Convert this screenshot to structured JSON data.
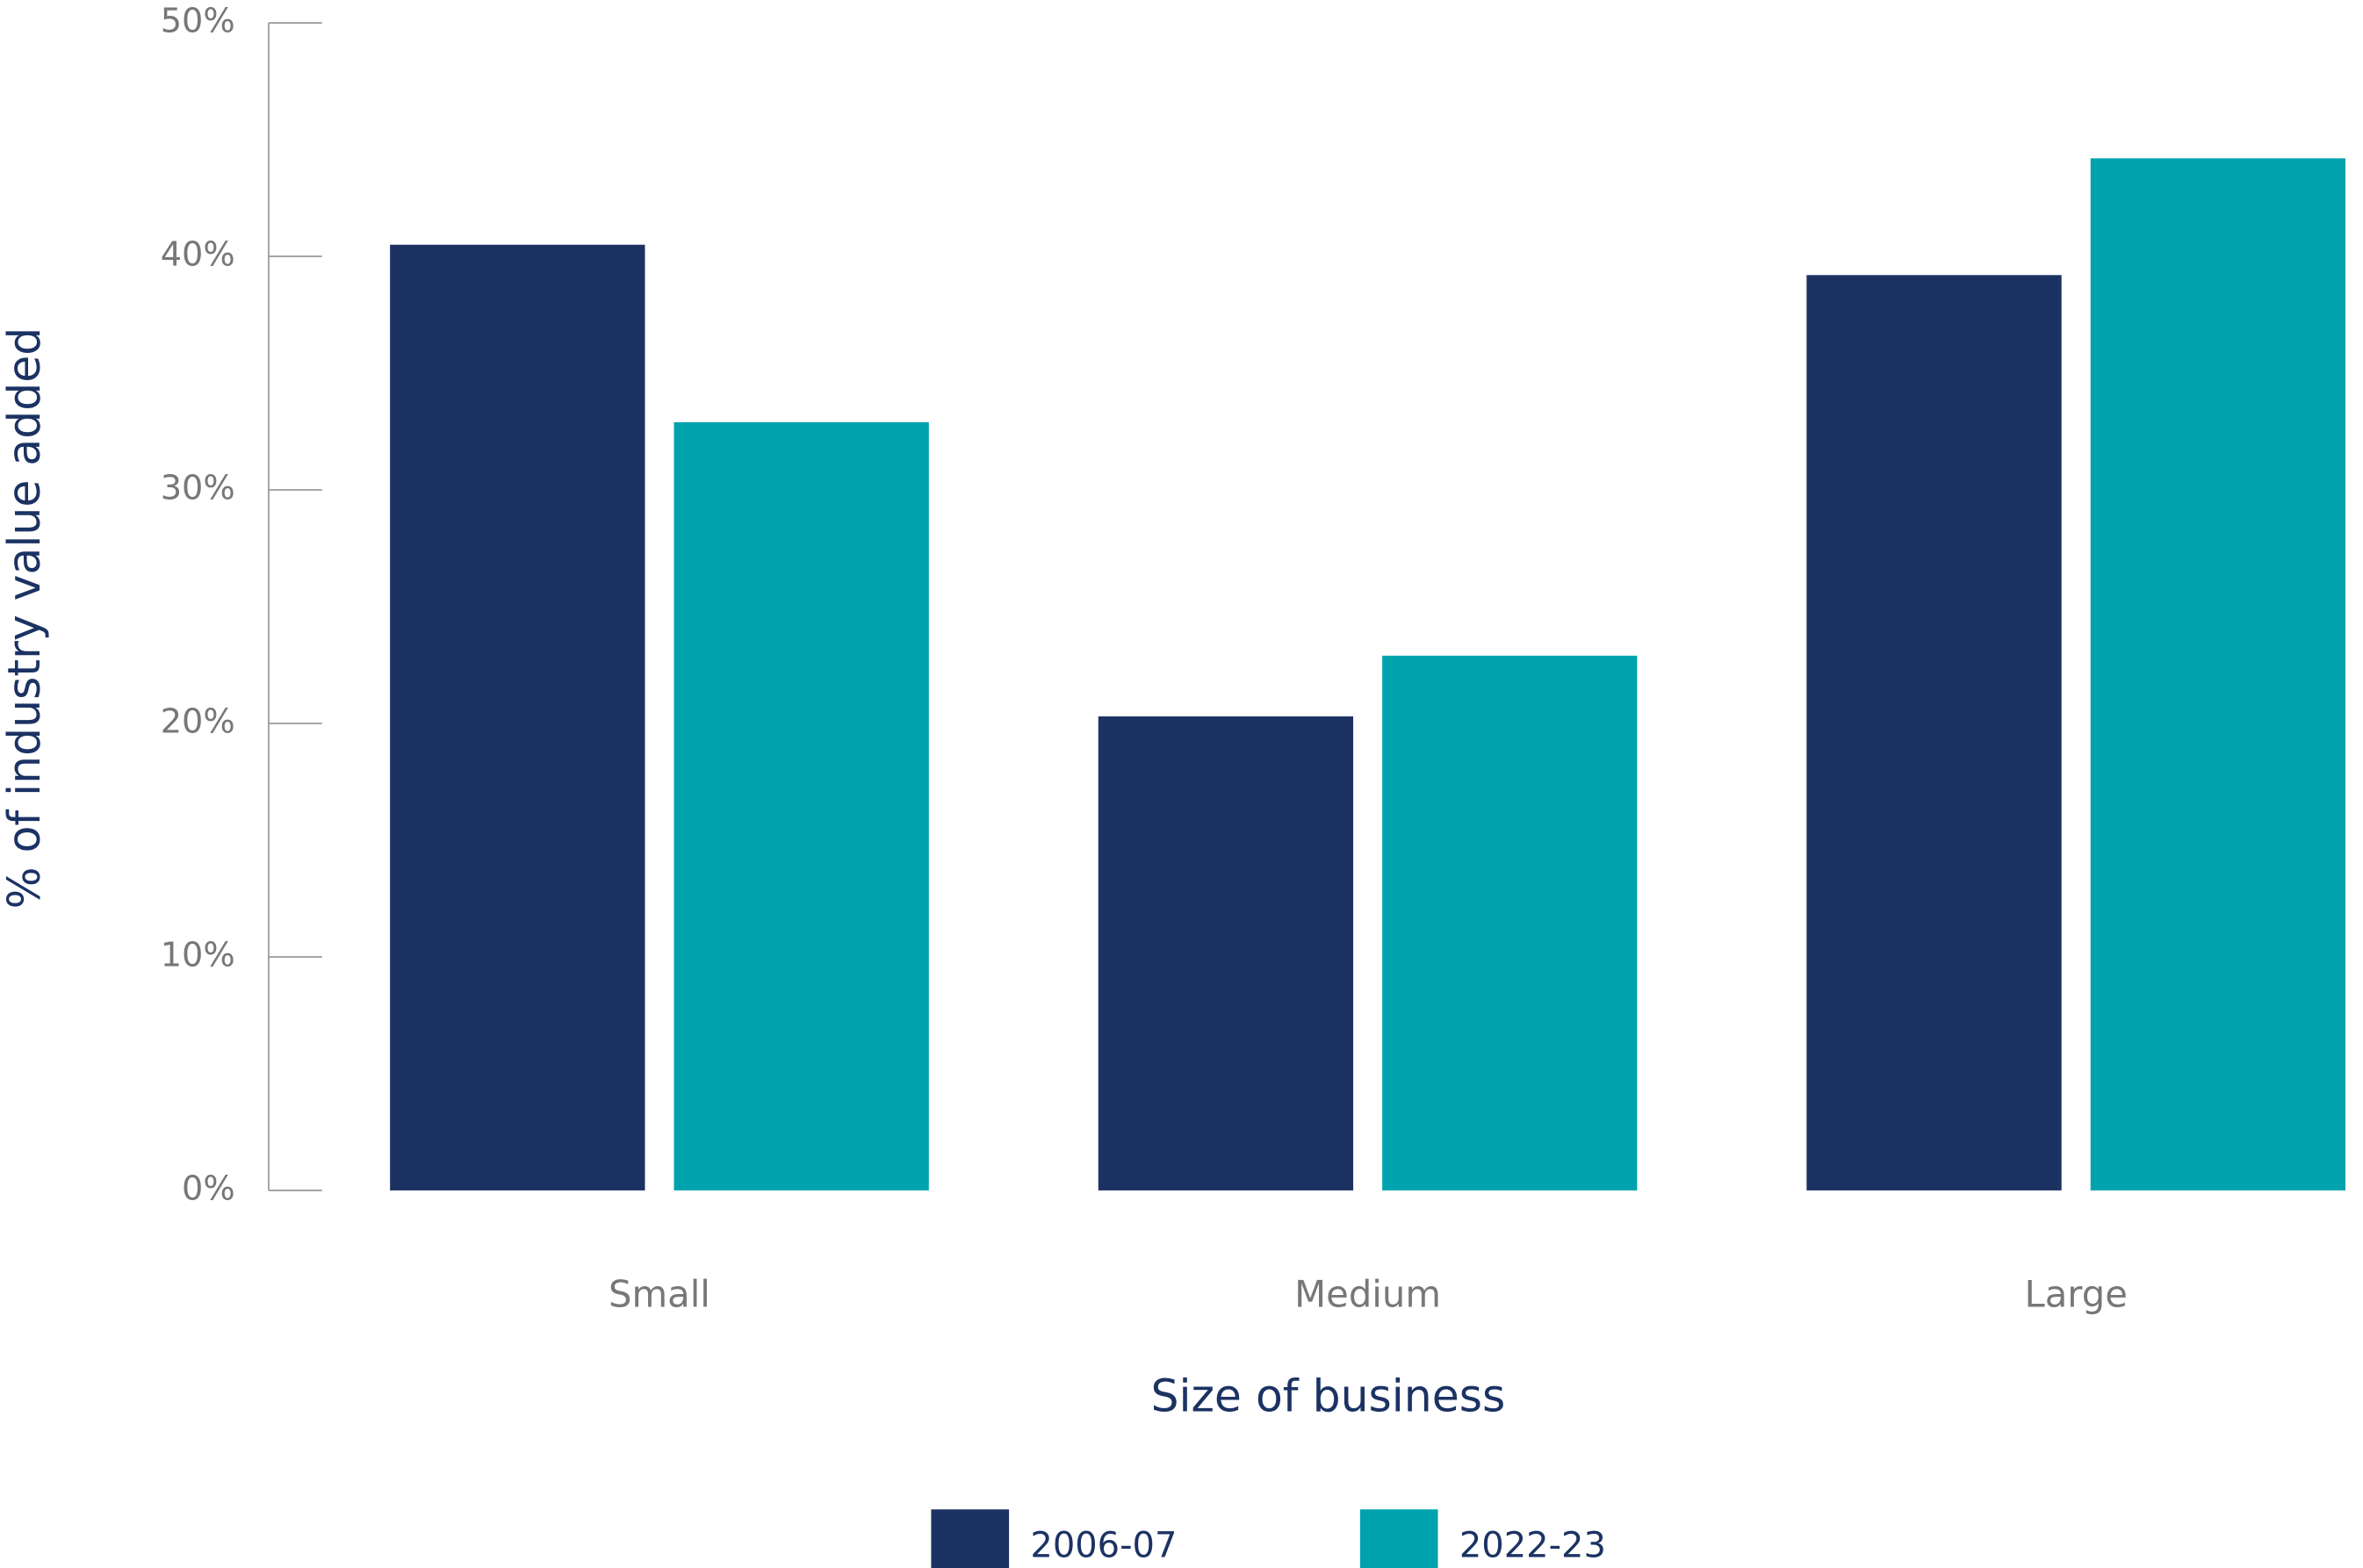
{
  "chart_data": {
    "type": "bar",
    "x_label": "Size of business",
    "y_label": "% of industry value added",
    "categories": [
      "Small",
      "Medium",
      "Large"
    ],
    "series": [
      {
        "name": "2006-07",
        "color": "#1b3263",
        "values": [
          40.5,
          20.3,
          39.2
        ]
      },
      {
        "name": "2022-23",
        "color": "#00a3ad",
        "values": [
          32.9,
          22.9,
          44.2
        ]
      }
    ],
    "ylim": [
      0,
      50
    ],
    "yticks": [
      {
        "value": 0,
        "label": "0%"
      },
      {
        "value": 10,
        "label": "10%"
      },
      {
        "value": 20,
        "label": "20%"
      },
      {
        "value": 30,
        "label": "30%"
      },
      {
        "value": 40,
        "label": "40%"
      },
      {
        "value": 50,
        "label": "50%"
      }
    ],
    "grid": false,
    "legend": "bottom"
  }
}
